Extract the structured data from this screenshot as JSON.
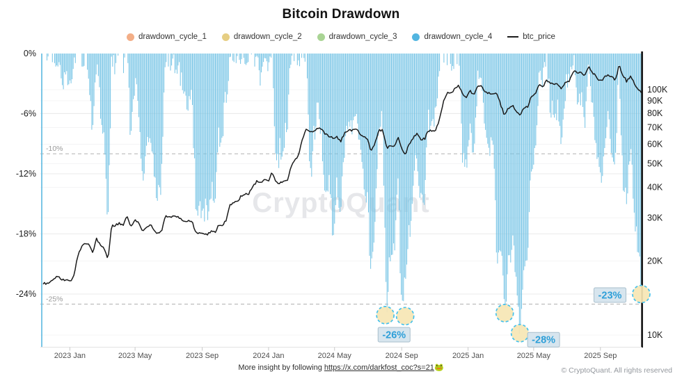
{
  "header": {
    "title": "Bitcoin Drawdown"
  },
  "legend": [
    {
      "label": "drawdown_cycle_1",
      "marker": "dot",
      "color": "#F3AE87"
    },
    {
      "label": "drawdown_cycle_2",
      "marker": "dot",
      "color": "#E6CE83"
    },
    {
      "label": "drawdown_cycle_3",
      "marker": "dot",
      "color": "#A9D494"
    },
    {
      "label": "drawdown_cycle_4",
      "marker": "dot",
      "color": "#52B5E0"
    },
    {
      "label": "btc_price",
      "marker": "line",
      "color": "#1B1B1B"
    }
  ],
  "watermark": "CryptoQuant",
  "footer": {
    "prefix": "More insight by following ",
    "link_text": "https://x.com/darkfost_coc?s=21",
    "emoji": "🐸",
    "copyright": "© CryptoQuant. All rights reserved"
  },
  "colors": {
    "bars": "#74C3E5",
    "price": "#1B1B1B",
    "badge_text": "#2E9FD8",
    "badge_bg": "#D7E5EE",
    "badge_border": "#A9BFCC",
    "circle_fill": "#F6E6B4",
    "circle_stroke": "#45C1EC",
    "grid_pct": "#ebebeb",
    "grid_price": "#f4f4f5",
    "ref_dash": "#b0b0b0"
  },
  "chart_data": {
    "type": "combo",
    "title": "Bitcoin Drawdown",
    "x_start": "2022-11-13",
    "x_step_days": 7,
    "x_ticks": [
      {
        "label": "2023 Jan",
        "week": 7.0
      },
      {
        "label": "2023 May",
        "week": 24.1
      },
      {
        "label": "2023 Sep",
        "week": 41.7
      },
      {
        "label": "2024 Jan",
        "week": 59.1
      },
      {
        "label": "2024 May",
        "week": 76.4
      },
      {
        "label": "2024 Sep",
        "week": 94.0
      },
      {
        "label": "2025 Jan",
        "week": 111.4
      },
      {
        "label": "2025 May",
        "week": 128.6
      },
      {
        "label": "2025 Sep",
        "week": 146.1
      }
    ],
    "left_axis": {
      "unit": "%",
      "min": -29,
      "max": 0,
      "ticks": [
        {
          "label": "0%",
          "v": 0
        },
        {
          "label": "-6%",
          "v": -6
        },
        {
          "label": "-12%",
          "v": -12
        },
        {
          "label": "-18%",
          "v": -18
        },
        {
          "label": "-24%",
          "v": -24
        }
      ]
    },
    "right_axis": {
      "unit": "USD",
      "scale": "log",
      "ticks": [
        {
          "label": "100K",
          "v": 100
        },
        {
          "label": "90K",
          "v": 90
        },
        {
          "label": "80K",
          "v": 80
        },
        {
          "label": "70K",
          "v": 70
        },
        {
          "label": "60K",
          "v": 60
        },
        {
          "label": "50K",
          "v": 50
        },
        {
          "label": "40K",
          "v": 40
        },
        {
          "label": "30K",
          "v": 30
        },
        {
          "label": "20K",
          "v": 20
        },
        {
          "label": "10K",
          "v": 10
        }
      ]
    },
    "reference_lines": [
      {
        "label": "-10%",
        "value": -10
      },
      {
        "label": "-25%",
        "value": -25
      }
    ],
    "annotations": [
      {
        "badge": "-26%",
        "badge_week": 92.0,
        "badge_pct": -28.05,
        "circles": [
          {
            "week": 89.7,
            "pct": -26.1
          },
          {
            "week": 94.9,
            "pct": -26.2
          }
        ]
      },
      {
        "badge": "-28%",
        "badge_week": 131.2,
        "badge_pct": -28.55,
        "circles": [
          {
            "week": 121.0,
            "pct": -25.9
          },
          {
            "week": 125.0,
            "pct": -27.9
          }
        ]
      },
      {
        "badge": "-23%",
        "badge_week": 148.6,
        "badge_pct": -24.1,
        "circles": [
          {
            "week": 156.8,
            "pct": -24.0
          }
        ]
      }
    ],
    "series": [
      {
        "name": "drawdown_cycle_4",
        "type": "bar",
        "axis": "left",
        "unit": "% from cycle high",
        "values": [
          -76,
          -0.6,
          0,
          0,
          0,
          -2.3,
          -2.3,
          -3.5,
          0,
          0,
          0,
          0,
          -1.7,
          -8,
          0,
          -5.7,
          -8.9,
          -16.7,
          0,
          -1,
          0,
          -0.7,
          0,
          -8.9,
          -3.3,
          -4.6,
          -11.6,
          -10.6,
          -7.3,
          -10.6,
          -14.5,
          -13.2,
          0,
          0,
          -1,
          -1.3,
          -2.3,
          -4.2,
          -5.2,
          -3.9,
          -14.7,
          -15,
          -15.4,
          -15.7,
          -13.4,
          -14.4,
          -8.5,
          -7.5,
          -4,
          0,
          0,
          0,
          0,
          0,
          0,
          0,
          0,
          -2.1,
          0,
          -1.6,
          0,
          -12,
          -9.6,
          -8.7,
          -7.4,
          0,
          0,
          0,
          0,
          0,
          -13,
          -8.1,
          -4.8,
          -8.5,
          -15.2,
          -11.2,
          -19,
          -12.5,
          -15.9,
          -9.3,
          -6.3,
          -7.2,
          -4.8,
          -8.9,
          -12,
          -14.2,
          -22.4,
          -16.8,
          -6.7,
          -6.6,
          -26.1,
          -19.7,
          -20,
          -12.2,
          -26.2,
          -21.7,
          -17.9,
          -13,
          -9.9,
          -14.1,
          -14,
          -6.4,
          -7.1,
          -6,
          0,
          0,
          0,
          -0.7,
          0,
          0,
          -10.4,
          -11.7,
          -7.4,
          -10.9,
          -1.5,
          -3.3,
          -7.9,
          -9.1,
          -9.4,
          -20.5,
          -18.9,
          -25.9,
          -20.5,
          -18.8,
          -22.3,
          -28.1,
          -20.4,
          -19.7,
          -11.4,
          -9.6,
          -1.9,
          -2.7,
          0,
          -5.5,
          -5.4,
          -5.6,
          -9.7,
          -3,
          -3.1,
          0,
          -4.4,
          -4.3,
          -7,
          0,
          -5.3,
          -8.5,
          -12.7,
          -10.3,
          -6.5,
          -9.3,
          -11.5,
          0,
          -14,
          -13.8,
          -9.1,
          -15.5,
          -19.4,
          -23.4
        ]
      },
      {
        "name": "btc_price",
        "type": "line",
        "axis": "right",
        "unit": "K USD",
        "values": [
          16.3,
          16.2,
          16.4,
          17.1,
          17.2,
          16.8,
          16.8,
          16.6,
          17.2,
          20.9,
          22.7,
          23.7,
          23.3,
          21.8,
          24.6,
          23.2,
          22.4,
          20.5,
          28,
          28,
          28.5,
          28.3,
          30.3,
          27.6,
          29.3,
          28.9,
          26.8,
          27.1,
          28.1,
          27.1,
          25.9,
          26.3,
          30.5,
          30.6,
          30.3,
          30.2,
          29.9,
          29.3,
          29,
          29.4,
          26.1,
          26,
          25.9,
          25.8,
          26.5,
          26.2,
          27.9,
          27.9,
          29.4,
          34.1,
          34.5,
          35,
          37.1,
          37.4,
          37.8,
          40.2,
          42.3,
          41.4,
          43,
          42.3,
          46,
          41.7,
          41.6,
          42,
          42.6,
          48.3,
          51.6,
          54.5,
          63,
          69,
          67.2,
          67.2,
          69.6,
          69.4,
          65.7,
          64.9,
          63.1,
          64,
          61.5,
          66.3,
          68.5,
          67.8,
          69.6,
          66.6,
          64.3,
          62.7,
          55.9,
          60.8,
          68.2,
          68.3,
          58.1,
          58.7,
          58.5,
          64.2,
          57.3,
          54.9,
          60,
          63.6,
          65.9,
          62.8,
          62.9,
          68.4,
          67.9,
          68.7,
          76.7,
          89.8,
          98,
          97.3,
          101.2,
          104.4,
          95.1,
          93.7,
          98.3,
          94.5,
          104.5,
          102.6,
          97.7,
          96.5,
          96.1,
          96.3,
          86,
          78.6,
          84.3,
          86.1,
          82.4,
          78.2,
          84.5,
          85.2,
          94,
          95.9,
          104.1,
          103.2,
          109,
          105.6,
          105.7,
          105.5,
          100.9,
          108.4,
          108.2,
          119.1,
          117.9,
          118,
          114.7,
          123.8,
          117.4,
          113.5,
          108.2,
          111.2,
          115.9,
          112.5,
          109.7,
          125.4,
          115,
          108,
          114,
          106,
          101,
          96
        ]
      }
    ]
  }
}
